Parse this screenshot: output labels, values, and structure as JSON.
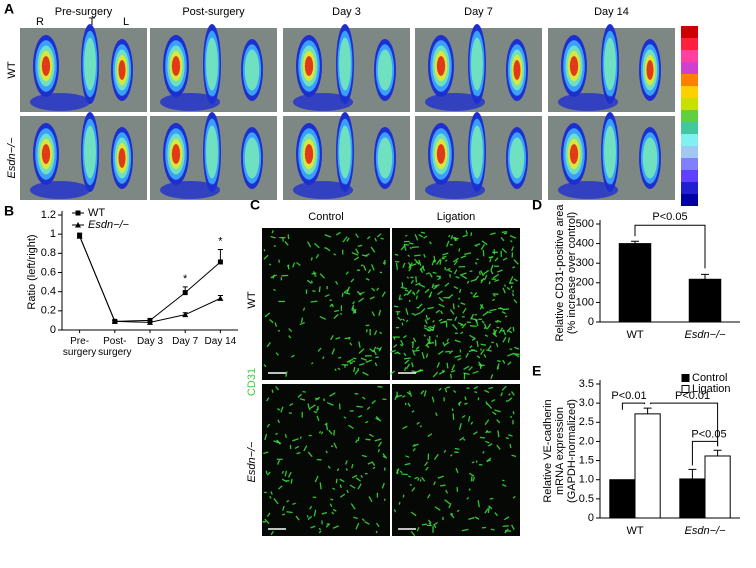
{
  "figure": {
    "panel_labels": [
      "A",
      "B",
      "C",
      "D",
      "E"
    ],
    "panel_a": {
      "column_headers": [
        "Pre-surgery",
        "Post-surgery",
        "Day 3",
        "Day 7",
        "Day 14"
      ],
      "side_labels": [
        "R",
        "T",
        "L"
      ],
      "row_labels": [
        "WT",
        "Esdn−/−"
      ]
    },
    "panel_c": {
      "column_headers": [
        "Control",
        "Ligation"
      ],
      "row_labels": [
        "WT",
        "Esdn−/−"
      ],
      "stain": "CD31"
    }
  },
  "chart_data": [
    {
      "type": "line",
      "y_label": "Ratio (left/right)",
      "categories": [
        "Pre-surgery",
        "Post-surgery",
        "Day 3",
        "Day 7",
        "Day 14"
      ],
      "series": [
        {
          "name": "WT",
          "color": "#000000",
          "marker": "square",
          "values": [
            0.98,
            0.09,
            0.1,
            0.39,
            0.71
          ],
          "errors": [
            0.03,
            0.01,
            0.02,
            0.06,
            0.13
          ]
        },
        {
          "name": "Esdn−/−",
          "color": "#000000",
          "marker": "triangle",
          "values": [
            0.98,
            0.09,
            0.08,
            0.16,
            0.33
          ],
          "errors": [
            0.03,
            0.01,
            0.01,
            0.02,
            0.03
          ]
        }
      ],
      "ylim": [
        0,
        1.2
      ],
      "yticks": [
        0,
        0.2,
        0.4,
        0.6,
        0.8,
        1,
        1.2
      ],
      "legend": "upper left",
      "annotations": [
        "*",
        "*"
      ]
    },
    {
      "type": "bar",
      "y_label": [
        "Relative CD31-positive area",
        "(% increase over control)"
      ],
      "categories": [
        "WT",
        "Esdn−/−"
      ],
      "values": [
        400,
        218
      ],
      "errors": [
        12,
        25
      ],
      "color": "#000000",
      "ylim": [
        0,
        500
      ],
      "yticks": [
        0,
        100,
        200,
        300,
        400,
        500
      ],
      "annotations": [
        "P<0.05"
      ]
    },
    {
      "type": "bar",
      "y_label": [
        "Relative VE-cadherin",
        "mRNA expression",
        "(GAPDH-normalized)"
      ],
      "categories": [
        "WT",
        "Esdn−/−"
      ],
      "series": [
        {
          "name": "Control",
          "color": "#000000",
          "values": [
            1.0,
            1.02
          ],
          "errors": [
            0,
            0.25
          ]
        },
        {
          "name": "Ligation",
          "color": "#ffffff",
          "values": [
            2.72,
            1.62
          ],
          "errors": [
            0.15,
            0.15
          ]
        }
      ],
      "ylim": [
        0,
        3.5
      ],
      "yticks": [
        0,
        {
          "value": 0.5,
          "label": "0.5"
        },
        {
          "value": 1,
          "label": "1.0"
        },
        {
          "value": 1.5,
          "label": "1.5"
        },
        {
          "value": 2,
          "label": "2.0"
        },
        {
          "value": 2.5,
          "label": "2.5"
        },
        {
          "value": 3,
          "label": "3.0"
        },
        {
          "value": 3.5,
          "label": "3.5"
        }
      ],
      "legend": "upper right",
      "annotations": [
        "P<0.01",
        "P<0.01",
        "P<0.05"
      ]
    }
  ]
}
